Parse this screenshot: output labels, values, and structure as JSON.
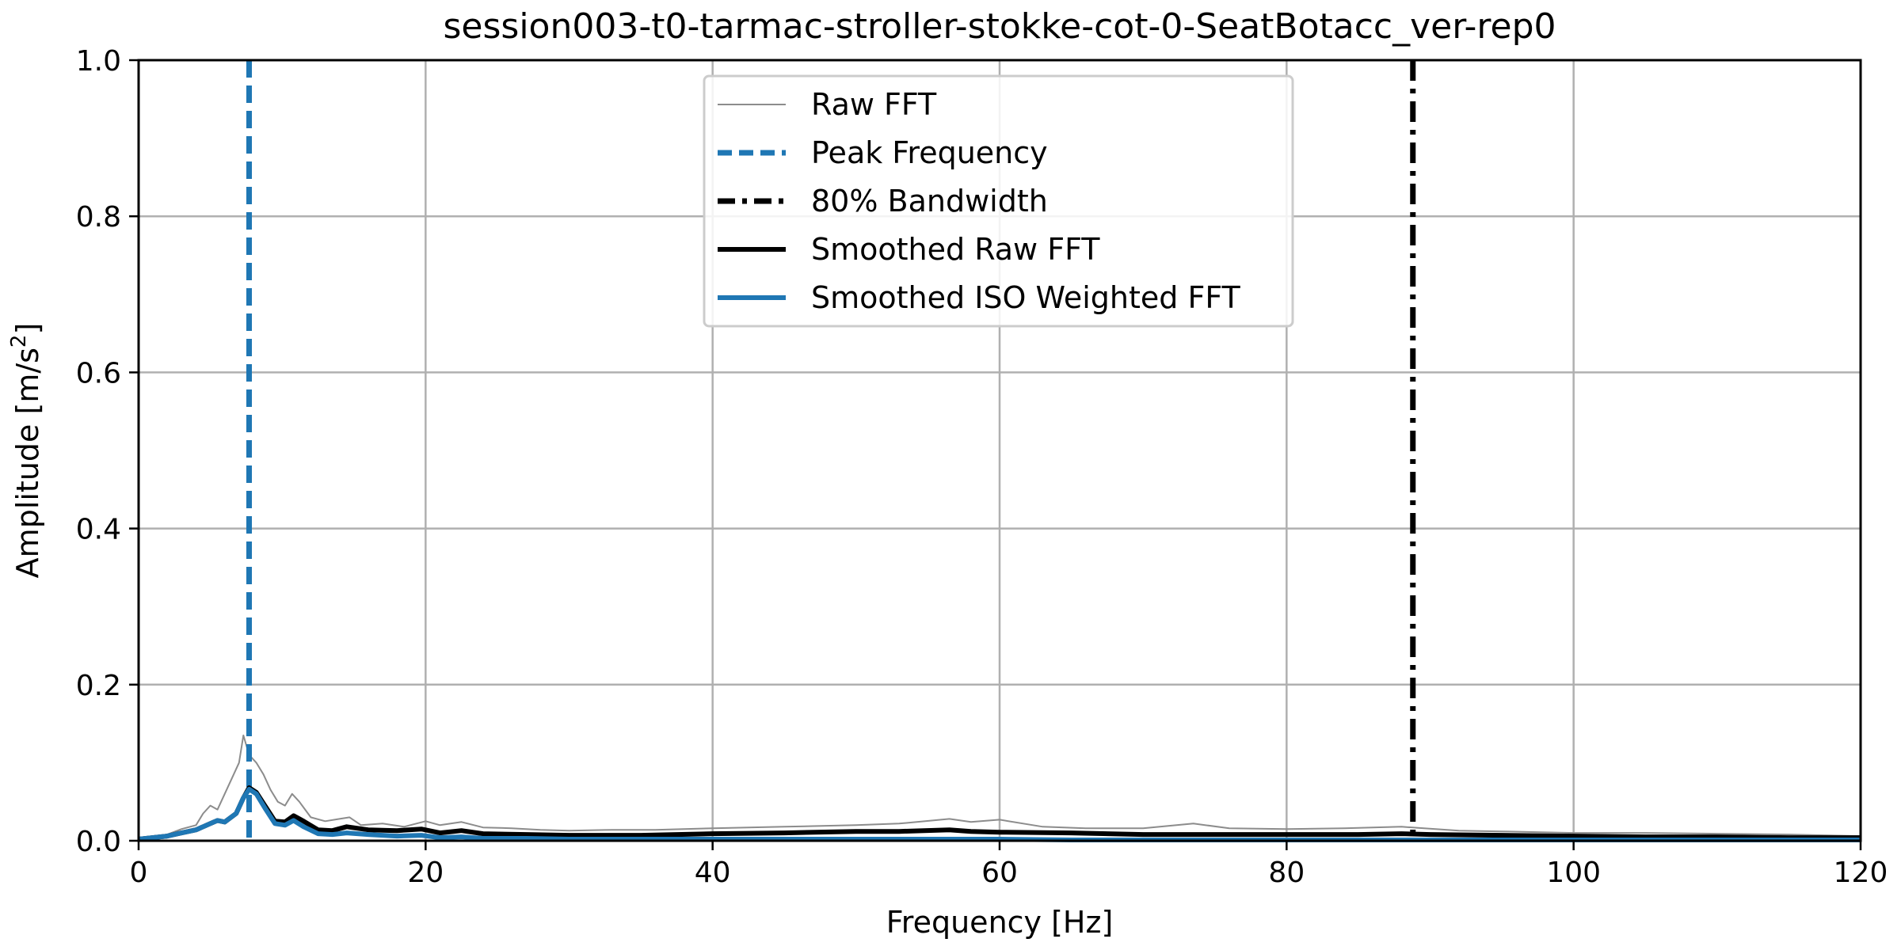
{
  "chart_data": {
    "type": "line",
    "title": "session003-t0-tarmac-stroller-stokke-cot-0-SeatBotacc_ver-rep0",
    "xlabel": "Frequency [Hz]",
    "ylabel_main": "Amplitude [m/s",
    "ylabel_sup": "2",
    "ylabel_end": "]",
    "xlim": [
      0,
      120
    ],
    "ylim": [
      0,
      1.0
    ],
    "x_ticks": [
      0,
      20,
      40,
      60,
      80,
      100,
      120
    ],
    "x_tick_labels": [
      "0",
      "20",
      "40",
      "60",
      "80",
      "100",
      "120"
    ],
    "y_ticks": [
      0,
      0.2,
      0.4,
      0.6,
      0.8,
      1.0
    ],
    "y_tick_labels": [
      "0.0",
      "0.2",
      "0.4",
      "0.6",
      "0.8",
      "1.0"
    ],
    "grid": true,
    "legend_position": "top-center",
    "colors": {
      "raw": "#8c8c8c",
      "peak": "#1f77b4",
      "bandwidth": "#000000",
      "smoothed_raw": "#000000",
      "smoothed_iso": "#1f77b4",
      "grid": "#b0b0b0"
    },
    "peak_frequency": 7.7,
    "bandwidth_80": 88.8,
    "series": [
      {
        "name": "Raw FFT",
        "style": "thin-line",
        "x": [
          0,
          2,
          3,
          4,
          4.5,
          5,
          5.5,
          6,
          6.5,
          7,
          7.3,
          7.7,
          8.2,
          8.7,
          9.2,
          9.7,
          10.2,
          10.7,
          11.2,
          12,
          13,
          14,
          14.7,
          15.5,
          17,
          18.5,
          20,
          21,
          22.5,
          24,
          26,
          28,
          30,
          33,
          36,
          40,
          45,
          50,
          53,
          56.5,
          58,
          60,
          63,
          66,
          70,
          73.5,
          76,
          80,
          84,
          88,
          92,
          95,
          100,
          105,
          110,
          115,
          120
        ],
        "y": [
          0.003,
          0.008,
          0.015,
          0.02,
          0.035,
          0.045,
          0.04,
          0.06,
          0.08,
          0.1,
          0.135,
          0.11,
          0.1,
          0.085,
          0.065,
          0.05,
          0.045,
          0.06,
          0.05,
          0.03,
          0.025,
          0.028,
          0.03,
          0.02,
          0.022,
          0.018,
          0.025,
          0.02,
          0.024,
          0.017,
          0.016,
          0.014,
          0.013,
          0.014,
          0.014,
          0.016,
          0.018,
          0.02,
          0.022,
          0.028,
          0.024,
          0.027,
          0.018,
          0.016,
          0.016,
          0.022,
          0.016,
          0.015,
          0.016,
          0.018,
          0.013,
          0.012,
          0.01,
          0.01,
          0.009,
          0.008,
          0.006
        ]
      },
      {
        "name": "Smoothed Raw FFT",
        "style": "thick-line",
        "x": [
          0,
          2,
          3,
          4,
          5,
          5.5,
          6,
          6.8,
          7.3,
          7.7,
          8.2,
          8.8,
          9.5,
          10.2,
          10.8,
          11.5,
          12.5,
          13.5,
          14.5,
          16,
          18,
          19.7,
          21,
          22.5,
          24,
          27,
          30,
          35,
          40,
          45,
          50,
          53,
          56.5,
          58,
          60,
          65,
          70,
          75,
          80,
          85,
          88,
          90,
          95,
          100,
          105,
          110,
          115,
          120
        ],
        "y": [
          0.002,
          0.006,
          0.01,
          0.014,
          0.022,
          0.026,
          0.024,
          0.035,
          0.055,
          0.068,
          0.062,
          0.045,
          0.025,
          0.024,
          0.032,
          0.025,
          0.014,
          0.013,
          0.018,
          0.014,
          0.013,
          0.015,
          0.01,
          0.013,
          0.009,
          0.008,
          0.007,
          0.007,
          0.009,
          0.01,
          0.012,
          0.012,
          0.014,
          0.012,
          0.011,
          0.01,
          0.008,
          0.008,
          0.008,
          0.008,
          0.009,
          0.008,
          0.007,
          0.006,
          0.005,
          0.005,
          0.004,
          0.004
        ]
      },
      {
        "name": "Smoothed ISO Weighted FFT",
        "style": "thick-line",
        "x": [
          0,
          2,
          3,
          4,
          5,
          5.5,
          6,
          6.8,
          7.3,
          7.7,
          8.2,
          8.8,
          9.5,
          10.2,
          10.8,
          11.5,
          12.5,
          13.5,
          14.5,
          16,
          18,
          19.7,
          21,
          22.5,
          24,
          27,
          30,
          35,
          40,
          45,
          50,
          55,
          60,
          65,
          70,
          80,
          90,
          100,
          110,
          120
        ],
        "y": [
          0.002,
          0.006,
          0.01,
          0.014,
          0.022,
          0.026,
          0.024,
          0.035,
          0.055,
          0.066,
          0.06,
          0.042,
          0.022,
          0.02,
          0.026,
          0.018,
          0.009,
          0.008,
          0.01,
          0.008,
          0.006,
          0.007,
          0.004,
          0.005,
          0.003,
          0.003,
          0.002,
          0.002,
          0.002,
          0.002,
          0.002,
          0.002,
          0.002,
          0.001,
          0.001,
          0.001,
          0.001,
          0.001,
          0.001,
          0.001
        ]
      }
    ],
    "legend": [
      {
        "label": "Raw FFT",
        "style": "thin"
      },
      {
        "label": "Peak Frequency",
        "style": "dashed"
      },
      {
        "label": "80% Bandwidth",
        "style": "dashdot"
      },
      {
        "label": "Smoothed Raw FFT",
        "style": "thick-black"
      },
      {
        "label": "Smoothed ISO Weighted FFT",
        "style": "thick-blue"
      }
    ]
  }
}
